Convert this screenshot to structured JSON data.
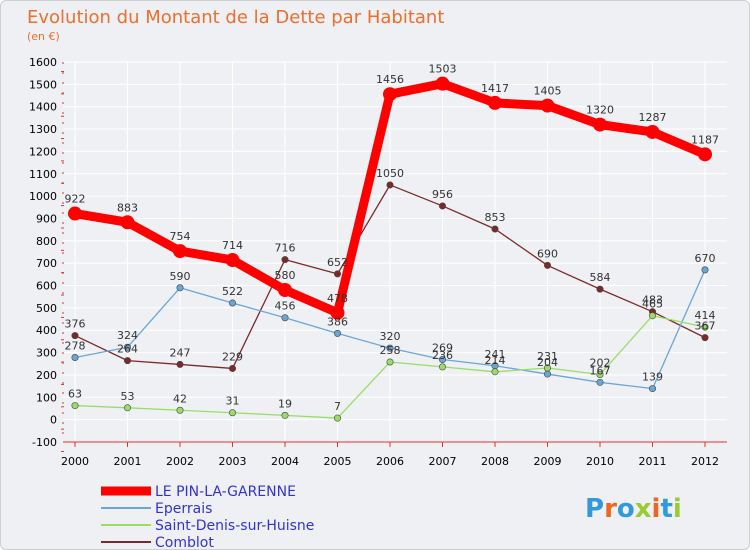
{
  "chart_data": {
    "type": "line",
    "title": "Evolution du Montant de la Dette par Habitant",
    "subtitle": "(en €)",
    "x": [
      "2000",
      "2001",
      "2002",
      "2003",
      "2004",
      "2005",
      "2006",
      "2007",
      "2008",
      "2009",
      "2010",
      "2011",
      "2012"
    ],
    "ylim": [
      -100,
      1600
    ],
    "yticks": [
      -100,
      0,
      100,
      200,
      300,
      400,
      500,
      600,
      700,
      800,
      900,
      1000,
      1100,
      1200,
      1300,
      1400,
      1500,
      1600
    ],
    "grid": true,
    "legend_position": "bottom-left",
    "series": [
      {
        "name": "LE PIN-LA-GARENNE",
        "color": "#ff0000",
        "values": [
          922,
          883,
          754,
          714,
          580,
          478,
          1456,
          1503,
          1417,
          1405,
          1320,
          1287,
          1187
        ]
      },
      {
        "name": "Eperrais",
        "color": "#6aa6d6",
        "values": [
          278,
          324,
          590,
          522,
          456,
          386,
          320,
          269,
          241,
          204,
          167,
          139,
          670
        ]
      },
      {
        "name": "Saint-Denis-sur-Huisne",
        "color": "#99dd66",
        "values": [
          63,
          53,
          42,
          31,
          19,
          7,
          258,
          236,
          214,
          231,
          202,
          465,
          414
        ]
      },
      {
        "name": "Comblot",
        "color": "#7a2a2a",
        "values": [
          376,
          264,
          247,
          229,
          716,
          652,
          1050,
          956,
          853,
          690,
          584,
          483,
          367
        ]
      }
    ]
  },
  "brand": {
    "text": "Proxiti"
  }
}
